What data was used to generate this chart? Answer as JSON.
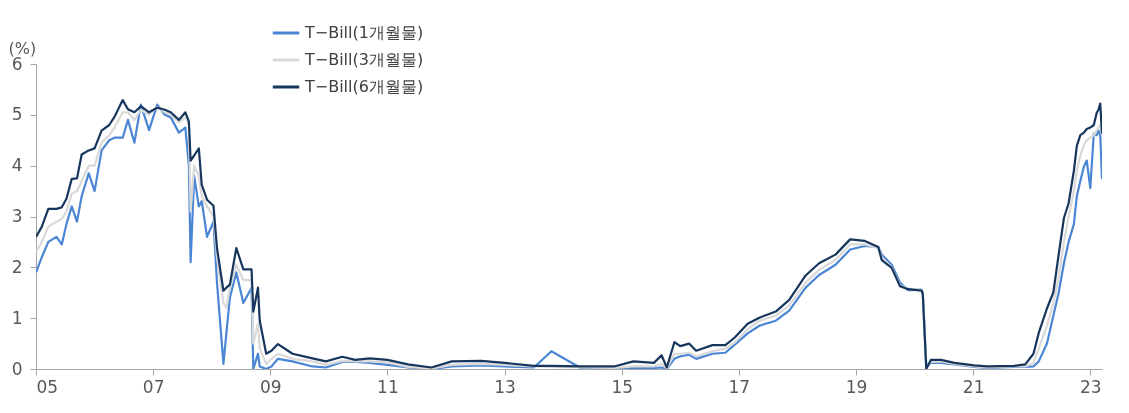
{
  "chart_data": {
    "type": "line",
    "ylabel": "(%)",
    "x": [
      2005.0,
      2005.1,
      2005.21,
      2005.35,
      2005.44,
      2005.52,
      2005.61,
      2005.7,
      2005.78,
      2005.9,
      2006.0,
      2006.12,
      2006.25,
      2006.34,
      2006.48,
      2006.57,
      2006.68,
      2006.79,
      2006.93,
      2007.07,
      2007.2,
      2007.3,
      2007.44,
      2007.55,
      2007.61,
      2007.64,
      2007.7,
      2007.78,
      2007.83,
      2007.92,
      2008.03,
      2008.09,
      2008.2,
      2008.25,
      2008.31,
      2008.42,
      2008.54,
      2008.68,
      2008.71,
      2008.79,
      2008.82,
      2008.93,
      2009.02,
      2009.13,
      2009.38,
      2009.72,
      2009.95,
      2010.23,
      2010.45,
      2010.7,
      2011.0,
      2011.35,
      2011.75,
      2012.1,
      2012.6,
      2013.0,
      2013.5,
      2013.8,
      2014.3,
      2014.87,
      2015.2,
      2015.55,
      2015.68,
      2015.77,
      2015.9,
      2016.0,
      2016.15,
      2016.27,
      2016.55,
      2016.77,
      2016.93,
      2017.15,
      2017.35,
      2017.63,
      2017.86,
      2018.14,
      2018.37,
      2018.65,
      2018.9,
      2019.15,
      2019.38,
      2019.44,
      2019.61,
      2019.75,
      2019.89,
      2020.12,
      2020.14,
      2020.2,
      2020.28,
      2020.45,
      2020.68,
      2021.02,
      2021.24,
      2021.7,
      2021.89,
      2022.03,
      2022.12,
      2022.26,
      2022.37,
      2022.46,
      2022.55,
      2022.63,
      2022.72,
      2022.77,
      2022.83,
      2022.89,
      2022.94,
      2023.0,
      2023.06,
      2023.11,
      2023.14,
      2023.17,
      2023.2
    ],
    "series": [
      {
        "name": "T−Bill(1개월물)",
        "color": "#4a86d4",
        "values": [
          1.9,
          2.2,
          2.5,
          2.6,
          2.45,
          2.85,
          3.2,
          2.9,
          3.4,
          3.85,
          3.5,
          4.3,
          4.5,
          4.55,
          4.55,
          4.9,
          4.45,
          5.2,
          4.7,
          5.2,
          5.0,
          4.95,
          4.65,
          4.75,
          4.0,
          2.1,
          3.8,
          3.2,
          3.3,
          2.6,
          2.9,
          1.7,
          0.1,
          0.7,
          1.4,
          1.9,
          1.3,
          1.6,
          0.0,
          0.3,
          0.05,
          0.0,
          0.05,
          0.2,
          0.15,
          0.05,
          0.03,
          0.14,
          0.14,
          0.12,
          0.08,
          0.03,
          0.0,
          0.05,
          0.07,
          0.05,
          0.03,
          0.35,
          0.02,
          0.01,
          0.02,
          0.02,
          0.03,
          0.0,
          0.2,
          0.25,
          0.28,
          0.2,
          0.3,
          0.32,
          0.48,
          0.7,
          0.85,
          0.95,
          1.15,
          1.6,
          1.85,
          2.05,
          2.35,
          2.42,
          2.4,
          2.25,
          2.05,
          1.7,
          1.55,
          1.56,
          1.5,
          0.05,
          0.12,
          0.12,
          0.09,
          0.04,
          0.02,
          0.04,
          0.04,
          0.05,
          0.15,
          0.5,
          1.05,
          1.5,
          2.08,
          2.5,
          2.85,
          3.4,
          3.7,
          3.98,
          4.1,
          3.56,
          4.63,
          4.6,
          4.69,
          4.6,
          3.74
        ]
      },
      {
        "name": "T−Bill(3개월물)",
        "color": "#d9d9d9",
        "values": [
          2.3,
          2.5,
          2.8,
          2.9,
          2.95,
          3.1,
          3.45,
          3.5,
          3.7,
          4.0,
          4.0,
          4.45,
          4.6,
          4.75,
          5.05,
          5.05,
          4.9,
          5.1,
          5.0,
          5.15,
          5.05,
          5.0,
          4.85,
          4.95,
          4.8,
          3.1,
          4.0,
          3.8,
          3.4,
          3.2,
          3.0,
          2.2,
          1.3,
          1.2,
          1.6,
          2.05,
          1.75,
          1.75,
          0.5,
          0.9,
          0.4,
          0.1,
          0.2,
          0.3,
          0.2,
          0.15,
          0.08,
          0.16,
          0.15,
          0.15,
          0.13,
          0.04,
          0.01,
          0.08,
          0.1,
          0.08,
          0.05,
          0.04,
          0.03,
          0.02,
          0.05,
          0.05,
          0.1,
          0.01,
          0.3,
          0.3,
          0.32,
          0.25,
          0.35,
          0.4,
          0.52,
          0.78,
          0.95,
          1.05,
          1.25,
          1.7,
          1.95,
          2.15,
          2.45,
          2.45,
          2.38,
          2.2,
          2.0,
          1.65,
          1.58,
          1.55,
          1.5,
          0.05,
          0.14,
          0.15,
          0.1,
          0.05,
          0.03,
          0.05,
          0.05,
          0.12,
          0.4,
          0.85,
          1.3,
          1.8,
          2.5,
          3.0,
          3.5,
          3.9,
          4.2,
          4.4,
          4.5,
          4.55,
          4.6,
          4.7,
          4.75,
          4.8,
          4.6
        ]
      },
      {
        "name": "T−Bill(6개월물)",
        "color": "#17365d",
        "values": [
          2.6,
          2.8,
          3.15,
          3.15,
          3.18,
          3.35,
          3.74,
          3.75,
          4.22,
          4.3,
          4.34,
          4.69,
          4.8,
          4.96,
          5.29,
          5.11,
          5.05,
          5.17,
          5.05,
          5.14,
          5.1,
          5.05,
          4.9,
          5.05,
          4.87,
          4.1,
          4.2,
          4.34,
          3.62,
          3.33,
          3.21,
          2.38,
          1.54,
          1.6,
          1.66,
          2.38,
          1.96,
          1.96,
          1.13,
          1.6,
          0.95,
          0.3,
          0.36,
          0.49,
          0.3,
          0.21,
          0.15,
          0.24,
          0.18,
          0.21,
          0.18,
          0.09,
          0.03,
          0.15,
          0.16,
          0.12,
          0.06,
          0.06,
          0.05,
          0.05,
          0.15,
          0.12,
          0.27,
          0.03,
          0.53,
          0.45,
          0.5,
          0.36,
          0.47,
          0.47,
          0.62,
          0.89,
          1.01,
          1.13,
          1.36,
          1.84,
          2.08,
          2.25,
          2.55,
          2.52,
          2.4,
          2.14,
          1.99,
          1.63,
          1.57,
          1.54,
          1.48,
          0.0,
          0.18,
          0.18,
          0.12,
          0.07,
          0.05,
          0.06,
          0.09,
          0.3,
          0.71,
          1.19,
          1.51,
          2.25,
          2.97,
          3.26,
          3.9,
          4.39,
          4.6,
          4.65,
          4.72,
          4.75,
          4.8,
          5.04,
          5.1,
          5.22,
          4.63
        ]
      }
    ],
    "xlim": [
      2005,
      2023.2
    ],
    "xticks": [
      {
        "value": 2005,
        "label": "05"
      },
      {
        "value": 2007,
        "label": "07"
      },
      {
        "value": 2009,
        "label": "09"
      },
      {
        "value": 2011,
        "label": "11"
      },
      {
        "value": 2013,
        "label": "13"
      },
      {
        "value": 2015,
        "label": "15"
      },
      {
        "value": 2017,
        "label": "17"
      },
      {
        "value": 2019,
        "label": "19"
      },
      {
        "value": 2021,
        "label": "21"
      },
      {
        "value": 2023,
        "label": "23"
      }
    ],
    "ylim": [
      0,
      6
    ],
    "yticks": [
      0,
      1,
      2,
      3,
      4,
      5,
      6
    ],
    "legend": "top",
    "grid": false,
    "marker": "none",
    "line_style": "solid"
  }
}
